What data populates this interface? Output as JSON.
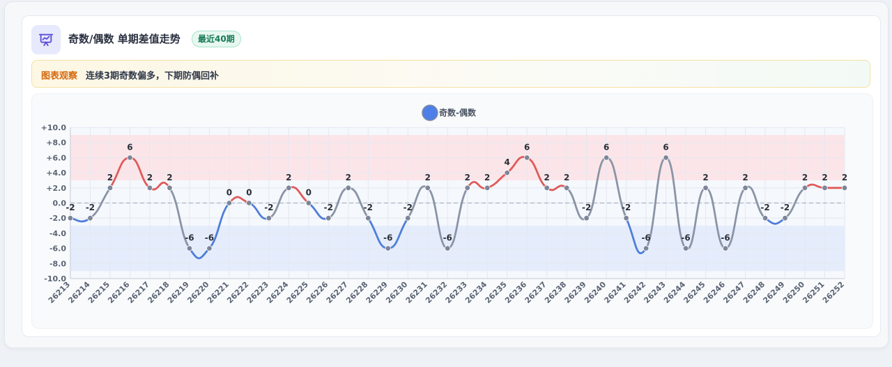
{
  "card": {
    "title": "奇数/偶数 单期差值走势",
    "badge": "最近40期",
    "icon": "presentation-chart-icon"
  },
  "observation": {
    "label": "图表观察",
    "text": "连续3期奇数偏多，下期防偶回补"
  },
  "colors": {
    "positive": "#e05a5a",
    "negative": "#4f7ed9",
    "neutral": "#8a94a6",
    "legend": "#4e7fe8",
    "accent": "#5a4fd6"
  },
  "chart_data": {
    "type": "line",
    "title": "",
    "xlabel": "",
    "ylabel": "",
    "legend": {
      "entries": [
        "奇数-偶数"
      ],
      "placement": "top-center"
    },
    "ylim": [
      -10,
      10
    ],
    "yticks": [
      "+10.0",
      "+8.0",
      "+6.0",
      "+4.0",
      "+2.0",
      "0.0",
      "-2.0",
      "-4.0",
      "-6.0",
      "-8.0",
      "-10.0"
    ],
    "bands": [
      {
        "from": 3,
        "to": 9,
        "color": "#fde2e4"
      },
      {
        "from": -9,
        "to": -3,
        "color": "#e2ebfb"
      }
    ],
    "grid": true,
    "x": [
      "26213",
      "26214",
      "26215",
      "26216",
      "26217",
      "26218",
      "26219",
      "26220",
      "26221",
      "26222",
      "26223",
      "26224",
      "26225",
      "26226",
      "26227",
      "26228",
      "26229",
      "26230",
      "26231",
      "26232",
      "26233",
      "26234",
      "26235",
      "26236",
      "26237",
      "26238",
      "26239",
      "26240",
      "26241",
      "26242",
      "26243",
      "26244",
      "26245",
      "26246",
      "26247",
      "26248",
      "26249",
      "26250",
      "26251",
      "26252"
    ],
    "series": [
      {
        "name": "奇数-偶数",
        "values": [
          -2,
          -2,
          2,
          6,
          2,
          2,
          -6,
          -6,
          0,
          0,
          -2,
          2,
          0,
          -2,
          2,
          -2,
          -6,
          -2,
          2,
          -6,
          2,
          2,
          4,
          6,
          2,
          2,
          -2,
          6,
          -2,
          -6,
          6,
          -6,
          2,
          -6,
          2,
          -2,
          -2,
          2,
          2,
          2
        ]
      }
    ]
  }
}
